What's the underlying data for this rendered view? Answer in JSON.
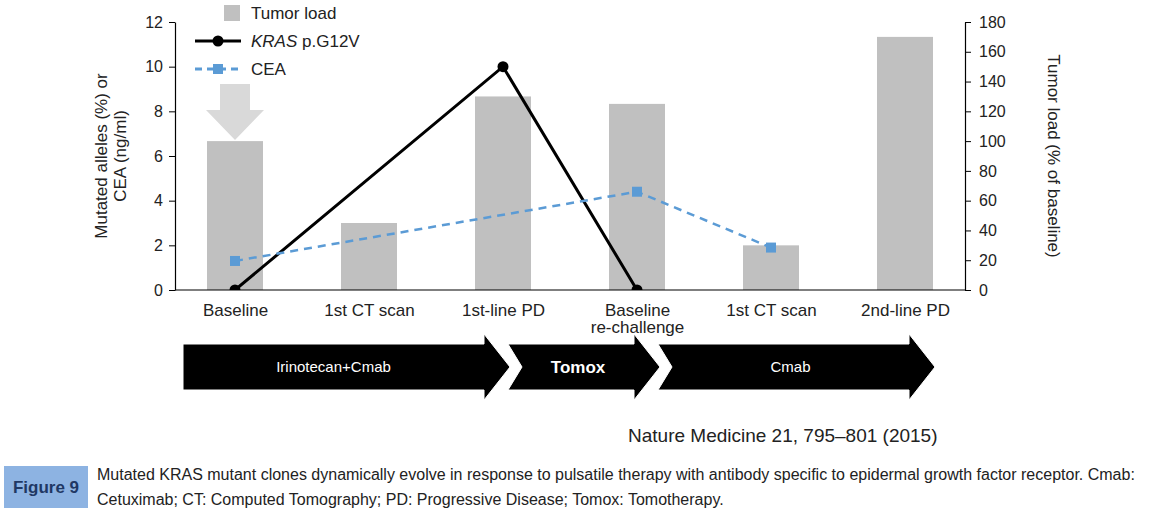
{
  "chart_data": {
    "type": "bar",
    "categories": [
      "Baseline",
      "1st CT scan",
      "1st-line PD",
      "Baseline re-challenge",
      "1st CT scan",
      "2nd-line PD"
    ],
    "series": [
      {
        "name": "Tumor load",
        "type": "bar",
        "axis": "y2",
        "color": "#c0c0c0",
        "values": [
          100,
          45,
          130,
          125,
          30,
          170
        ]
      },
      {
        "name": "KRAS p.G12V",
        "type": "line",
        "color": "#000000",
        "marker": "circle",
        "line_style": "solid",
        "values": [
          0,
          null,
          10,
          0,
          null,
          null
        ]
      },
      {
        "name": "CEA",
        "type": "line",
        "color": "#5b9bd5",
        "marker": "square",
        "line_style": "dashed",
        "values": [
          1.3,
          null,
          null,
          4.4,
          1.9,
          null
        ]
      }
    ],
    "ylabel": [
      "Mutated alleles (%) or",
      "CEA (ng/ml)"
    ],
    "y2label": "Tumor load (% of baseline)",
    "ylim": [
      0,
      12
    ],
    "yticks": [
      0,
      2,
      4,
      6,
      8,
      10,
      12
    ],
    "y2lim": [
      0,
      180
    ],
    "y2ticks": [
      0,
      20,
      40,
      60,
      80,
      100,
      120,
      140,
      160,
      180
    ],
    "grid": false,
    "legend": "top-left",
    "therapies": [
      "Irinotecan+Cmab",
      "Tomox",
      "Cmab"
    ],
    "source": "Nature Medicine 21, 795–801 (2015)",
    "figure_label": "Figure 9",
    "caption": "Mutated KRAS mutant clones dynamically evolve in response to pulsatile therapy with antibody specific to epidermal growth factor receptor. Cmab: Cetuximab; CT: Computed Tomography; PD: Progressive Disease; Tomox: Tomotherapy."
  }
}
